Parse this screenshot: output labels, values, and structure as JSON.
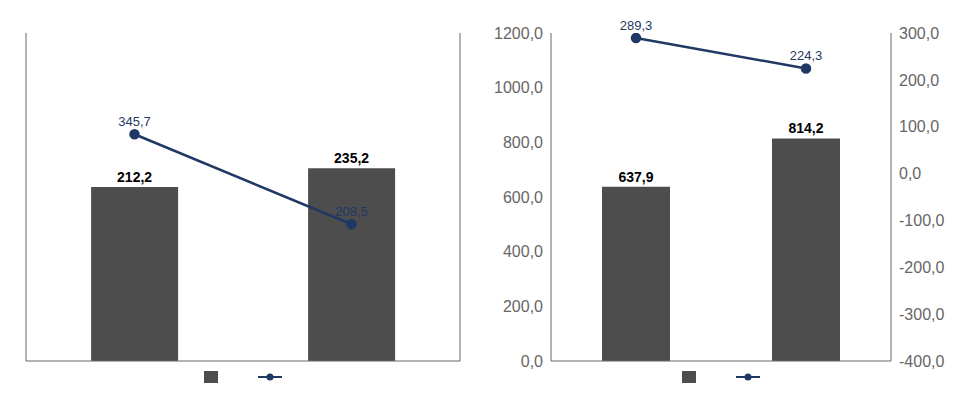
{
  "chart_data": [
    {
      "type": "bar",
      "categories": [
        null,
        null
      ],
      "ylim": [
        0,
        400
      ],
      "y2lim": [
        0,
        500
      ],
      "tick_labels": false,
      "legend": "bottom",
      "series": [
        {
          "type": "bar",
          "color": "#4d4d4d",
          "values": [
            212.2,
            235.2
          ],
          "value_labels": [
            "212,2",
            "235,2"
          ],
          "data_labels": true
        },
        {
          "type": "line",
          "axis": "y2",
          "color": "#1f3864",
          "marker": "circle",
          "values": [
            345.7,
            208.5
          ],
          "value_labels": [
            "345,7",
            "208,5"
          ],
          "data_labels": true
        }
      ]
    },
    {
      "type": "bar",
      "categories": [
        null,
        null
      ],
      "ylim": [
        0,
        1200
      ],
      "yticks": [
        {
          "value": 0,
          "label": "0,0"
        },
        {
          "value": 200,
          "label": "200,0"
        },
        {
          "value": 400,
          "label": "400,0"
        },
        {
          "value": 600,
          "label": "600,0"
        },
        {
          "value": 800,
          "label": "800,0"
        },
        {
          "value": 1000,
          "label": "1000,0"
        },
        {
          "value": 1200,
          "label": "1200,0"
        }
      ],
      "y2lim": [
        -400,
        300
      ],
      "y2ticks": [
        {
          "value": 300,
          "label": "300,0"
        },
        {
          "value": 200,
          "label": "200,0"
        },
        {
          "value": 100,
          "label": "100,0"
        },
        {
          "value": 0,
          "label": "0,0"
        },
        {
          "value": -100,
          "label": "-100,0"
        },
        {
          "value": -200,
          "label": "-200,0"
        },
        {
          "value": -300,
          "label": "-300,0"
        },
        {
          "value": -400,
          "label": "-400,0"
        }
      ],
      "tick_labels": "y",
      "legend": "bottom",
      "series": [
        {
          "type": "bar",
          "color": "#4d4d4d",
          "values": [
            637.9,
            814.2
          ],
          "value_labels": [
            "637,9",
            "814,2"
          ],
          "data_labels": true
        },
        {
          "type": "line",
          "axis": "y2",
          "color": "#1f3864",
          "marker": "circle",
          "values": [
            289.3,
            224.3
          ],
          "value_labels": [
            "289,3",
            "224,3"
          ],
          "data_labels": true
        }
      ]
    }
  ]
}
